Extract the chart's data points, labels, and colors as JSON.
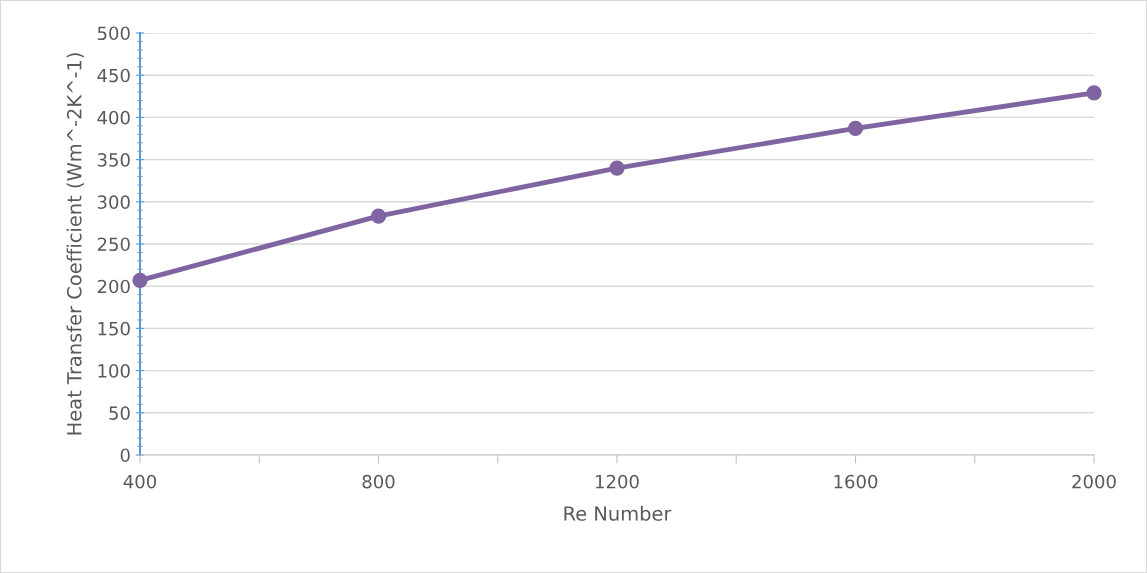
{
  "chart_data": {
    "type": "line",
    "xlabel": "Re Number",
    "ylabel": "Heat Transfer Coefficient (Wm^-2K^-1)",
    "x": [
      400,
      800,
      1200,
      1600,
      2000
    ],
    "series": [
      {
        "color": "#8064a2",
        "values": [
          207,
          283,
          340,
          387,
          429
        ]
      }
    ],
    "xlim": [
      400,
      2000
    ],
    "xticks": [
      400,
      {
        "value": 600,
        "label": null
      },
      800,
      {
        "value": 1000,
        "label": null
      },
      1200,
      {
        "value": 1400,
        "label": null
      },
      1600,
      {
        "value": 1800,
        "label": null
      },
      2000
    ],
    "ylim": [
      0,
      500
    ],
    "yticks": [
      0,
      50,
      100,
      150,
      200,
      250,
      300,
      350,
      400,
      450,
      500
    ],
    "grid": "y",
    "marker": "circle",
    "line_style": "solid",
    "legend": false
  }
}
